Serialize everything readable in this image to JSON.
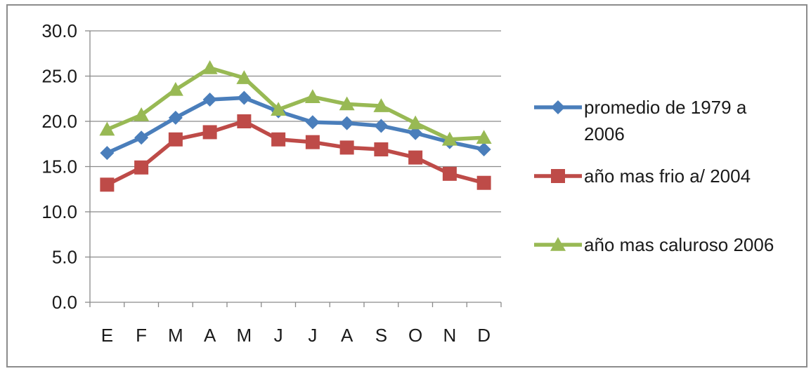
{
  "chart_data": {
    "type": "line",
    "categories": [
      "E",
      "F",
      "M",
      "A",
      "M",
      "J",
      "J",
      "A",
      "S",
      "O",
      "N",
      "D"
    ],
    "ylim": [
      0,
      30
    ],
    "yticks": [
      0,
      5,
      10,
      15,
      20,
      25,
      30
    ],
    "ytick_labels": [
      "0.0",
      "5.0",
      "10.0",
      "15.0",
      "20.0",
      "25.0",
      "30.0"
    ],
    "grid": true,
    "legend_position": "right",
    "series": [
      {
        "name": "promedio de 1979 a 2006",
        "legend_lines": [
          "promedio de 1979 a",
          "2006"
        ],
        "color": "#4a7ebb",
        "marker": "diamond",
        "values": [
          16.5,
          18.2,
          20.4,
          22.4,
          22.6,
          21.1,
          19.9,
          19.8,
          19.5,
          18.7,
          17.7,
          16.9
        ]
      },
      {
        "name": "año mas frio a/ 2004",
        "legend_lines": [
          "año mas frio a/ 2004"
        ],
        "color": "#be4b48",
        "marker": "square",
        "values": [
          13.0,
          14.9,
          18.0,
          18.8,
          20.0,
          18.0,
          17.7,
          17.1,
          16.9,
          16.0,
          14.2,
          13.2
        ]
      },
      {
        "name": "año mas caluroso 2006",
        "legend_lines": [
          "año mas caluroso 2006"
        ],
        "color": "#98b954",
        "marker": "triangle",
        "values": [
          19.1,
          20.7,
          23.5,
          25.9,
          24.8,
          21.3,
          22.7,
          21.9,
          21.7,
          19.8,
          18.0,
          18.2
        ]
      }
    ]
  }
}
